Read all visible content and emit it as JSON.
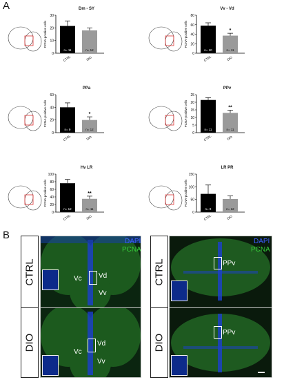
{
  "panel_labels": {
    "a": "A",
    "b": "B"
  },
  "colors": {
    "ctrl_bar": "#000000",
    "dio_bar": "#9a9a9a",
    "dapi": "#3d5cff",
    "pcna": "#36d13a"
  },
  "chart_data": [
    {
      "type": "bar",
      "title": "Dm - SY",
      "ylabel": "PCNA-positive cells",
      "categories": [
        "CTRL",
        "DIO"
      ],
      "values": [
        21.5,
        18
      ],
      "errors": [
        4,
        2
      ],
      "ylim": [
        0,
        30
      ],
      "yticks": [
        0,
        10,
        20,
        30
      ],
      "n_labels": [
        "n= 11",
        "n= 12"
      ],
      "significance": ""
    },
    {
      "type": "bar",
      "title": "Vv - Vd",
      "ylabel": "PCNA-positive cells",
      "categories": [
        "CTRL",
        "DIO"
      ],
      "values": [
        58,
        37
      ],
      "errors": [
        6,
        5
      ],
      "ylim": [
        0,
        80
      ],
      "yticks": [
        0,
        20,
        40,
        60,
        80
      ],
      "n_labels": [
        "n= 10",
        "n= 11"
      ],
      "significance": "*"
    },
    {
      "type": "bar",
      "title": "PPa",
      "ylabel": "PCNA-positive cells",
      "categories": [
        "CTRL",
        "DIO"
      ],
      "values": [
        40,
        20
      ],
      "errors": [
        7,
        5
      ],
      "ylim": [
        0,
        60
      ],
      "yticks": [
        0,
        20,
        40,
        60
      ],
      "n_labels": [
        "n= 9",
        "n= 12"
      ],
      "significance": "*"
    },
    {
      "type": "bar",
      "title": "PPv",
      "ylabel": "PCNA-positive cells",
      "categories": [
        "CTRL",
        "DIO"
      ],
      "values": [
        21.5,
        13
      ],
      "errors": [
        1.5,
        1.8
      ],
      "ylim": [
        0,
        25
      ],
      "yticks": [
        0,
        5,
        10,
        15,
        20,
        25
      ],
      "n_labels": [
        "n= 11",
        "n= 11"
      ],
      "significance": "**"
    },
    {
      "type": "bar",
      "title": "Hv LR",
      "ylabel": "PCNA-positive cells",
      "categories": [
        "CTRL",
        "DIO"
      ],
      "values": [
        76,
        35
      ],
      "errors": [
        10,
        7
      ],
      "ylim": [
        0,
        100
      ],
      "yticks": [
        0,
        20,
        40,
        60,
        80,
        100
      ],
      "n_labels": [
        "n= 12",
        "n= 11"
      ],
      "significance": "**"
    },
    {
      "type": "bar",
      "title": "LR PR",
      "ylabel": "PCNA-positive cells",
      "categories": [
        "CTRL",
        "DIO"
      ],
      "values": [
        72,
        52
      ],
      "errors": [
        35,
        12
      ],
      "ylim": [
        0,
        150
      ],
      "yticks": [
        0,
        50,
        100,
        150
      ],
      "n_labels": [
        "n= 8",
        "n= 12"
      ],
      "significance": ""
    }
  ],
  "micrographs": {
    "row_labels": [
      "CTRL",
      "DIO"
    ],
    "legend": {
      "dapi": "DAPI",
      "pcna": "PCNA"
    },
    "left_regions": [
      "Vc",
      "Vd",
      "Vv"
    ],
    "right_region": "PPv"
  }
}
